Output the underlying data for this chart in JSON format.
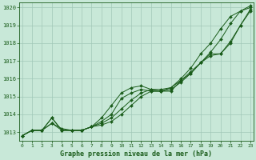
{
  "xlabel": "Graphe pression niveau de la mer (hPa)",
  "ylim": [
    1012.5,
    1020.3
  ],
  "xlim": [
    -0.3,
    23.3
  ],
  "yticks": [
    1013,
    1014,
    1015,
    1016,
    1017,
    1018,
    1019,
    1020
  ],
  "xticks": [
    0,
    1,
    2,
    3,
    4,
    5,
    6,
    7,
    8,
    9,
    10,
    11,
    12,
    13,
    14,
    15,
    16,
    17,
    18,
    19,
    20,
    21,
    22,
    23
  ],
  "bg_color": "#c8e8d8",
  "plot_bg_color": "#c8e8d8",
  "line_color": "#1a5c1a",
  "grid_color": "#a0c8b8",
  "series": [
    [
      1012.8,
      1013.1,
      1013.1,
      1013.8,
      1013.1,
      1013.1,
      1013.1,
      1013.3,
      1013.4,
      1013.6,
      1014.0,
      1014.5,
      1015.0,
      1015.3,
      1015.3,
      1015.4,
      1015.8,
      1016.3,
      1016.9,
      1017.4,
      1017.4,
      1018.1,
      1019.0,
      1019.9
    ],
    [
      1012.8,
      1013.1,
      1013.1,
      1013.8,
      1013.1,
      1013.1,
      1013.1,
      1013.3,
      1013.5,
      1013.8,
      1014.3,
      1014.8,
      1015.2,
      1015.4,
      1015.3,
      1015.5,
      1015.9,
      1016.4,
      1016.9,
      1017.3,
      1017.4,
      1018.0,
      1019.0,
      1019.8
    ],
    [
      1012.8,
      1013.1,
      1013.1,
      1013.5,
      1013.1,
      1013.1,
      1013.1,
      1013.3,
      1013.6,
      1014.0,
      1014.9,
      1015.2,
      1015.4,
      1015.3,
      1015.3,
      1015.3,
      1015.9,
      1016.3,
      1016.9,
      1017.5,
      1018.2,
      1019.1,
      1019.8,
      1020.0
    ],
    [
      1012.8,
      1013.1,
      1013.1,
      1013.5,
      1013.2,
      1013.1,
      1013.1,
      1013.3,
      1013.8,
      1014.5,
      1015.2,
      1015.5,
      1015.6,
      1015.4,
      1015.4,
      1015.5,
      1016.0,
      1016.6,
      1017.4,
      1018.0,
      1018.8,
      1019.5,
      1019.8,
      1020.1
    ]
  ]
}
